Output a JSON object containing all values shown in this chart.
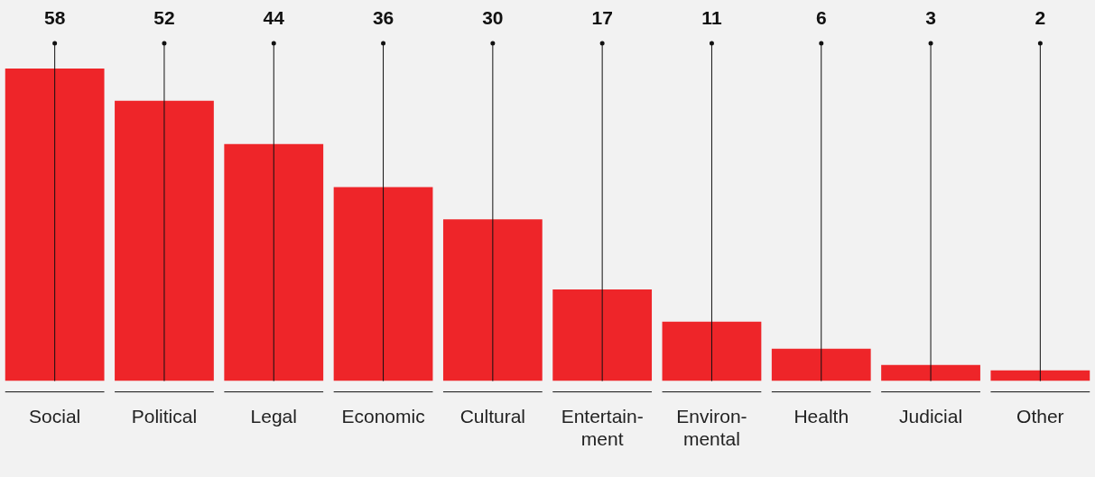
{
  "chart_data": {
    "type": "bar",
    "categories": [
      "Social",
      "Political",
      "Legal",
      "Economic",
      "Cultural",
      "Entertain-ment",
      "Environ-mental",
      "Health",
      "Judicial",
      "Other"
    ],
    "values": [
      58,
      52,
      44,
      36,
      30,
      17,
      11,
      6,
      3,
      2
    ],
    "color": "#ee2529",
    "data_labels": true,
    "grid": "x",
    "legend": false
  }
}
